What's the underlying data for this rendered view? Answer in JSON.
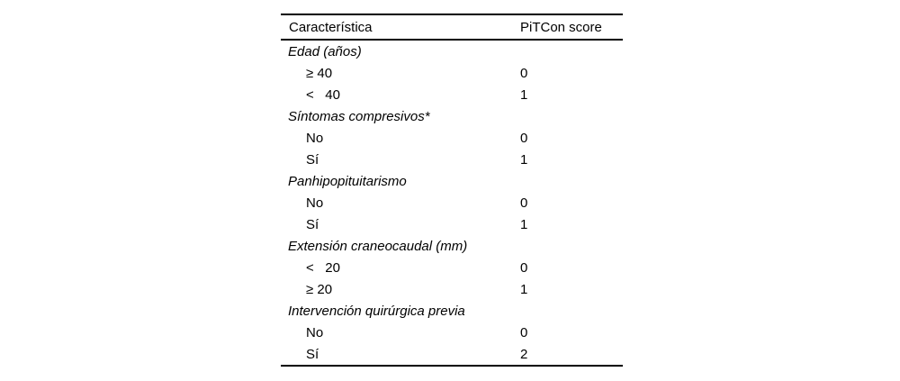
{
  "table": {
    "columns": [
      "Característica",
      "PiTCon score"
    ],
    "groups": [
      {
        "label": "Edad (años)",
        "rows": [
          {
            "label": "≥ 40",
            "score": "0"
          },
          {
            "label": "<   40",
            "score": "1"
          }
        ]
      },
      {
        "label": "Síntomas compresivos*",
        "rows": [
          {
            "label": "No",
            "score": "0"
          },
          {
            "label": "Sí",
            "score": "1"
          }
        ]
      },
      {
        "label": "Panhipopituitarismo",
        "rows": [
          {
            "label": "No",
            "score": "0"
          },
          {
            "label": "Sí",
            "score": "1"
          }
        ]
      },
      {
        "label": "Extensión craneocaudal (mm)",
        "rows": [
          {
            "label": "<   20",
            "score": "0"
          },
          {
            "label": "≥ 20",
            "score": "1"
          }
        ]
      },
      {
        "label": "Intervención quirúrgica previa",
        "rows": [
          {
            "label": "No",
            "score": "0"
          },
          {
            "label": "Sí",
            "score": "2"
          }
        ]
      }
    ],
    "colors": {
      "text": "#000000",
      "rule": "#000000",
      "background": "#ffffff"
    }
  }
}
